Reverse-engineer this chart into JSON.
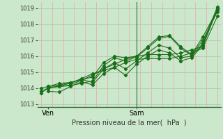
{
  "bg_color": "#cce8cc",
  "grid_color_v": "#e8b0b0",
  "grid_color_h": "#aaccaa",
  "line_color": "#1a6e1a",
  "ylim": [
    1012.8,
    1019.4
  ],
  "xlim": [
    -1,
    49
  ],
  "yticks": [
    1013,
    1014,
    1015,
    1016,
    1017,
    1018,
    1019
  ],
  "xtick_labels": [
    "Ven",
    "Sam"
  ],
  "xtick_positions": [
    2,
    26
  ],
  "vline_x": 26,
  "xlabel": "Pression niveau de la mer(  hPa  )",
  "series": [
    [
      0,
      1013.7,
      2,
      1014.0,
      5,
      1014.1,
      8,
      1014.2,
      11,
      1014.5,
      14,
      1014.8,
      17,
      1015.2,
      20,
      1015.5,
      23,
      1015.8,
      26,
      1016.0,
      29,
      1016.1,
      32,
      1016.1,
      35,
      1016.1,
      38,
      1016.2,
      41,
      1016.4,
      44,
      1016.6,
      48,
      1019.0
    ],
    [
      0,
      1013.8,
      2,
      1014.0,
      5,
      1014.15,
      8,
      1014.3,
      11,
      1014.6,
      14,
      1014.9,
      17,
      1015.1,
      20,
      1015.3,
      23,
      1015.6,
      26,
      1015.8,
      29,
      1015.85,
      32,
      1015.85,
      35,
      1015.85,
      38,
      1016.0,
      41,
      1016.2,
      44,
      1016.5,
      48,
      1018.5
    ],
    [
      0,
      1014.0,
      2,
      1014.1,
      5,
      1014.3,
      8,
      1014.35,
      11,
      1014.5,
      14,
      1014.7,
      17,
      1015.6,
      20,
      1016.0,
      23,
      1015.9,
      26,
      1016.0,
      29,
      1016.6,
      32,
      1017.2,
      35,
      1017.3,
      38,
      1016.6,
      41,
      1016.1,
      44,
      1017.2,
      48,
      1018.9
    ],
    [
      2,
      1014.05,
      5,
      1014.1,
      8,
      1014.15,
      11,
      1014.3,
      14,
      1014.45,
      17,
      1015.4,
      20,
      1015.9,
      23,
      1015.7,
      26,
      1015.95,
      29,
      1016.5,
      32,
      1017.1,
      35,
      1017.25,
      38,
      1016.5,
      41,
      1016.05,
      44,
      1017.0,
      48,
      1018.8
    ],
    [
      2,
      1014.1,
      5,
      1014.2,
      8,
      1014.35,
      11,
      1014.55,
      14,
      1014.35,
      17,
      1015.2,
      20,
      1015.6,
      23,
      1015.2,
      26,
      1015.7,
      29,
      1016.2,
      32,
      1016.7,
      35,
      1016.5,
      38,
      1015.9,
      41,
      1016.0,
      44,
      1016.8,
      48,
      1019.1
    ],
    [
      2,
      1013.8,
      5,
      1013.75,
      8,
      1014.1,
      11,
      1014.4,
      14,
      1014.2,
      17,
      1014.9,
      20,
      1015.3,
      23,
      1014.8,
      26,
      1015.5,
      29,
      1016.0,
      32,
      1016.4,
      35,
      1016.2,
      38,
      1015.7,
      41,
      1015.9,
      44,
      1016.7,
      48,
      1018.9
    ]
  ]
}
